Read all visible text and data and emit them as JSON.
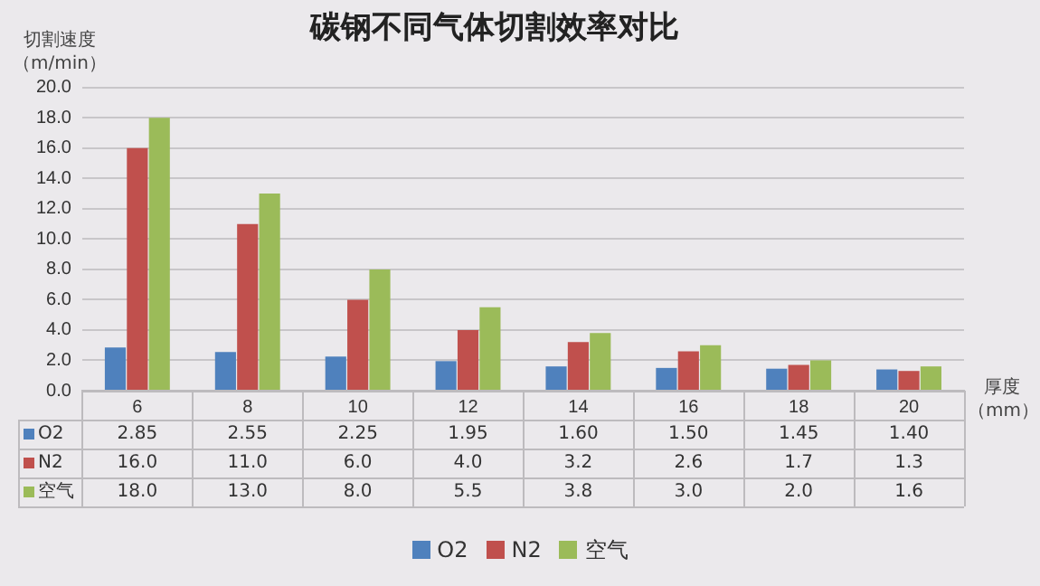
{
  "chart_data": {
    "type": "bar",
    "title": "碳钢不同气体切割效率对比",
    "ylabel": "切割速度（m/min）",
    "xlabel": "厚度（mm）",
    "categories": [
      "6",
      "8",
      "10",
      "12",
      "14",
      "16",
      "18",
      "20"
    ],
    "series": [
      {
        "name": "O2",
        "color": "#4f81bd",
        "values": [
          2.85,
          2.55,
          2.25,
          1.95,
          1.6,
          1.5,
          1.45,
          1.4
        ],
        "value_labels": [
          "2.85",
          "2.55",
          "2.25",
          "1.95",
          "1.60",
          "1.50",
          "1.45",
          "1.40"
        ]
      },
      {
        "name": "N2",
        "color": "#c0504d",
        "values": [
          16,
          11,
          6,
          4,
          3.2,
          2.6,
          1.7,
          1.3
        ],
        "value_labels": [
          "16.0",
          "11.0",
          "6.0",
          "4.0",
          "3.2",
          "2.6",
          "1.7",
          "1.3"
        ]
      },
      {
        "name": "空气",
        "color": "#9bbb59",
        "values": [
          18,
          13,
          8,
          5.5,
          3.8,
          3,
          2,
          1.6
        ],
        "value_labels": [
          "18.0",
          "13.0",
          "8.0",
          "5.5",
          "3.8",
          "3.0",
          "2.0",
          "1.6"
        ]
      }
    ],
    "ylim": [
      0,
      20
    ],
    "yticks": [
      {
        "value": 0,
        "label": "0.0"
      },
      {
        "value": 2,
        "label": "2.0"
      },
      {
        "value": 4,
        "label": "4.0"
      },
      {
        "value": 6,
        "label": "6.0"
      },
      {
        "value": 8,
        "label": "8.0"
      },
      {
        "value": 10,
        "label": "10.0"
      },
      {
        "value": 12,
        "label": "12.0"
      },
      {
        "value": 14,
        "label": "14.0"
      },
      {
        "value": 16,
        "label": "16.0"
      },
      {
        "value": 18,
        "label": "18.0"
      },
      {
        "value": 20,
        "label": "20.0"
      }
    ],
    "grid": "y",
    "legend": "bottom"
  }
}
